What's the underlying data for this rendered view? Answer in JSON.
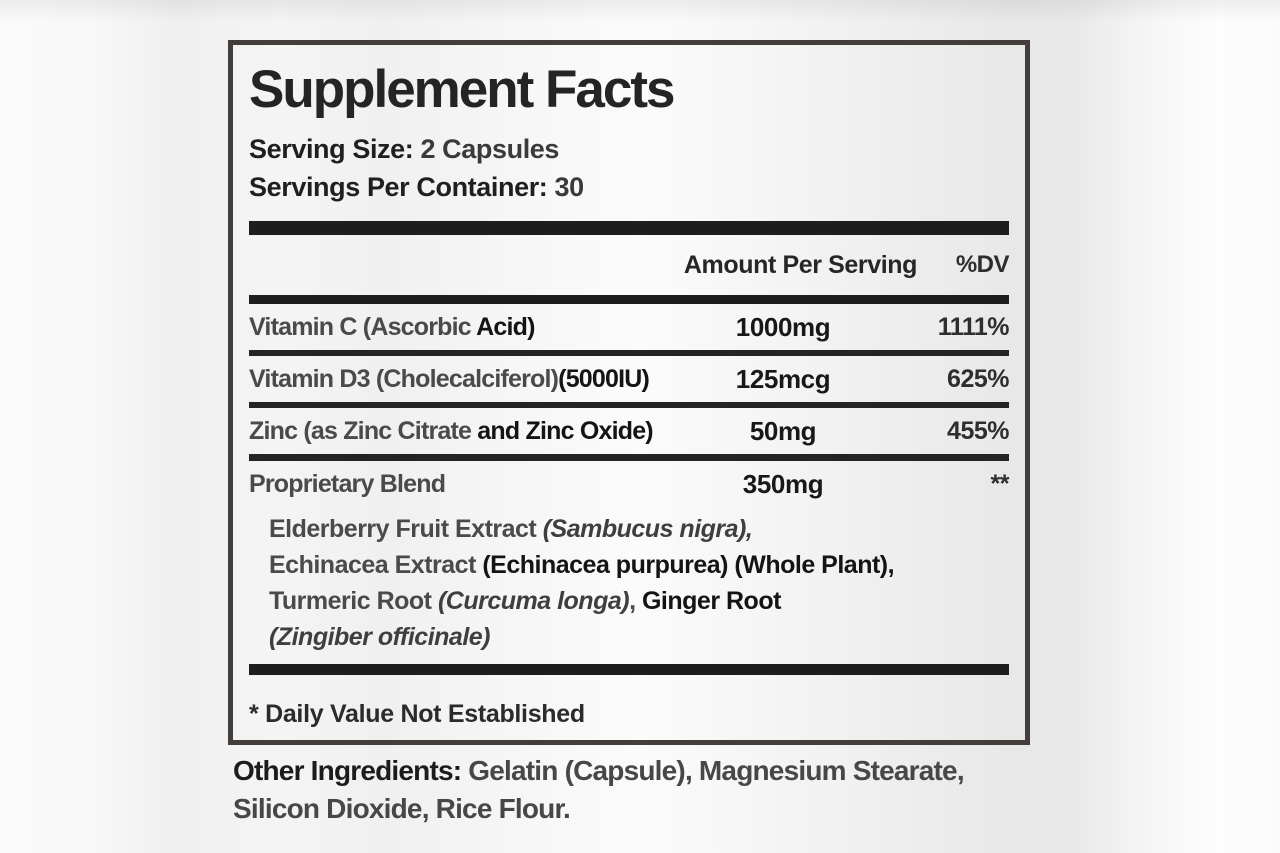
{
  "panel": {
    "title": "Supplement Facts",
    "serving_size": {
      "label": "Serving Size:",
      "value": "2 Capsules"
    },
    "servings_per_container": {
      "label": "Servings Per Container:",
      "value": "30"
    },
    "columns": {
      "amount": "Amount Per Serving",
      "dv": "%DV"
    },
    "rows": [
      {
        "name": [
          {
            "t": "Vitamin C (Ascorbic ",
            "s": "med"
          },
          {
            "t": "Acid)",
            "s": "bold"
          }
        ],
        "amount": "1000mg",
        "dv": "1111%"
      },
      {
        "name": [
          {
            "t": "Vitamin D3 (Cholecalciferol)",
            "s": "med"
          },
          {
            "t": "(5000IU)",
            "s": "bold"
          }
        ],
        "amount": "125mcg",
        "dv": "625%"
      },
      {
        "name": [
          {
            "t": "Zinc (as Zinc Citrate ",
            "s": "med"
          },
          {
            "t": "and Zinc Oxide)",
            "s": "bold"
          }
        ],
        "amount": "50mg",
        "dv": "455%"
      },
      {
        "name": [
          {
            "t": "Proprietary Blend",
            "s": "med"
          }
        ],
        "amount": "350mg",
        "dv": "**"
      }
    ],
    "blend_lines": [
      [
        {
          "t": "Elderberry Fruit Extract ",
          "s": "med"
        },
        {
          "t": "(Sambucus nigra),",
          "s": "ital"
        }
      ],
      [
        {
          "t": "Echinacea Extract ",
          "s": "med"
        },
        {
          "t": "(Echinacea purpurea) (Whole Plant),",
          "s": "bold"
        }
      ],
      [
        {
          "t": "Turmeric Root ",
          "s": "med"
        },
        {
          "t": "(Curcuma longa)",
          "s": "ital"
        },
        {
          "t": ", ",
          "s": "med"
        },
        {
          "t": "Ginger Root",
          "s": "bold"
        }
      ],
      [
        {
          "t": "(Zingiber officinale)",
          "s": "ital"
        }
      ]
    ],
    "footnote": "* Daily Value Not Established",
    "other_ingredients": {
      "label": "Other Ingredients:",
      "value": " Gelatin (Capsule), Magnesium Stearate, Silicon Dioxide, Rice Flour."
    }
  },
  "colors": {
    "panel_border": "#433e3b",
    "divider": "#1d1d1d",
    "text_dark": "#141414",
    "text_medium": "#4a4a4a"
  }
}
